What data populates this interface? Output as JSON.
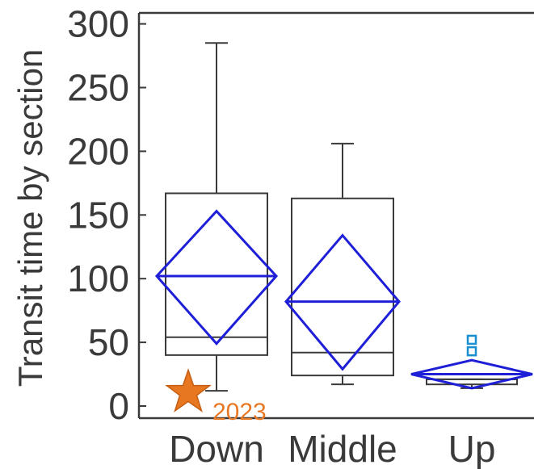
{
  "chart_data": {
    "type": "box",
    "ylabel": "Transit time by section",
    "xlabel": "",
    "ylim": [
      0,
      310
    ],
    "yticks": [
      "0",
      "50",
      "100",
      "150",
      "200",
      "250",
      "300"
    ],
    "categories": [
      "Down",
      "Middle",
      "Up"
    ],
    "boxes": [
      {
        "category": "Down",
        "whisker_low": 12,
        "q1": 40,
        "median": 54,
        "q3": 167,
        "whisker_high": 285,
        "mean": 102,
        "ci_low": 49,
        "ci_high": 153,
        "outliers": []
      },
      {
        "category": "Middle",
        "whisker_low": 17,
        "q1": 24,
        "median": 42,
        "q3": 163,
        "whisker_high": 206,
        "mean": 82,
        "ci_low": 29,
        "ci_high": 134,
        "outliers": []
      },
      {
        "category": "Up",
        "whisker_low": 14,
        "q1": 17,
        "median": 21,
        "q3": 21,
        "whisker_high": 21,
        "mean": 25,
        "ci_low": 14,
        "ci_high": 36,
        "outliers": [
          43,
          52
        ]
      }
    ],
    "annotation": {
      "marker": "star",
      "label": "2023",
      "value": 8,
      "category": "Down",
      "color": "#E87722"
    },
    "colors": {
      "box": "#3a3a3a",
      "diamond": "#1f1fd8",
      "outlier": "#1a8fd0",
      "axis": "#3a3a3a"
    }
  }
}
